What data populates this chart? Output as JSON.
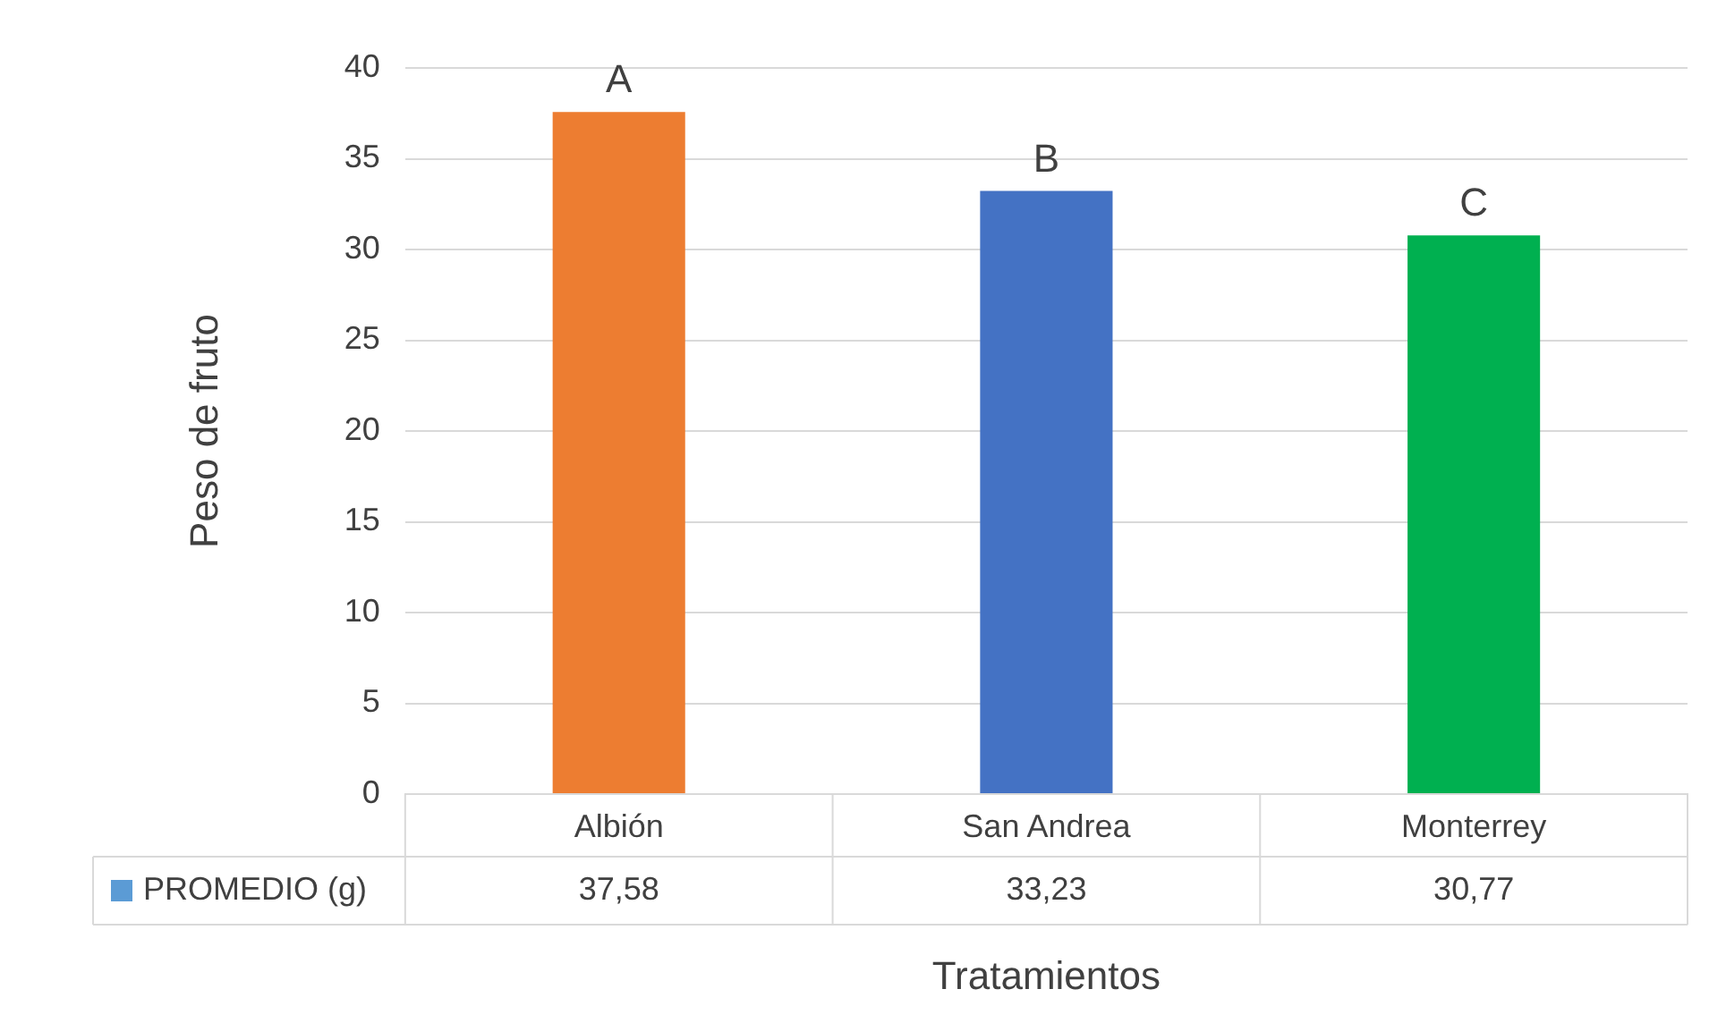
{
  "chart_data": {
    "type": "bar",
    "xlabel": "Tratamientos",
    "ylabel": "Peso de fruto",
    "categories": [
      "Albión",
      "San Andrea",
      "Monterrey"
    ],
    "series": [
      {
        "name": "PROMEDIO (g)",
        "color": "#5b9bd5",
        "colors": [
          "#ed7d31",
          "#4472c4",
          "#00b050"
        ],
        "values": [
          37.58,
          33.23,
          30.77
        ],
        "value_labels": [
          "37,58",
          "33,23",
          "30,77"
        ]
      }
    ],
    "ylim": [
      0,
      40
    ],
    "yticks": [
      0,
      5,
      10,
      15,
      20,
      25,
      30,
      35,
      40
    ],
    "grid": "y",
    "annotations": [
      {
        "text": "A",
        "x": "Albión",
        "y": 37.58
      },
      {
        "text": "B",
        "x": "San Andrea",
        "y": 33.23
      },
      {
        "text": "C",
        "x": "Monterrey",
        "y": 30.77
      }
    ]
  }
}
